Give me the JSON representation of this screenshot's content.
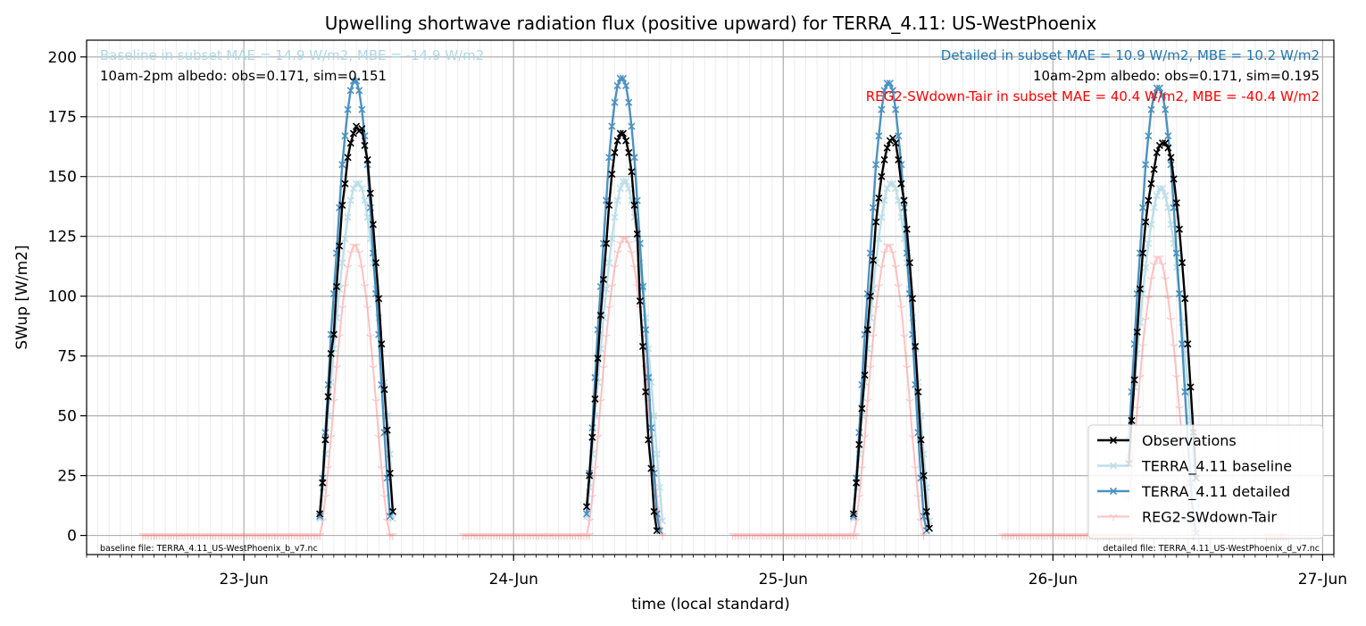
{
  "chart_data": {
    "type": "line",
    "title": "Upwelling shortwave radiation flux (positive upward) for TERRA_4.11: US-WestPhoenix",
    "xlabel": "time (local standard)",
    "ylabel": "SWup [W/m2]",
    "xlim": [
      "2023-06-22T10:00",
      "2023-06-27T01:00"
    ],
    "ylim": [
      -8,
      207
    ],
    "grid": true,
    "y_ticks": [
      0,
      25,
      50,
      75,
      100,
      125,
      150,
      175,
      200
    ],
    "x_ticks": [
      {
        "x": "2023-06-23T00:00",
        "label": "23-Jun"
      },
      {
        "x": "2023-06-24T00:00",
        "label": "24-Jun"
      },
      {
        "x": "2023-06-25T00:00",
        "label": "25-Jun"
      },
      {
        "x": "2023-06-26T00:00",
        "label": "26-Jun"
      },
      {
        "x": "2023-06-27T00:00",
        "label": "27-Jun"
      }
    ],
    "legend_position": "lower-right",
    "series": [
      {
        "name": "Observations",
        "color": "#000000",
        "marker": "x",
        "days": [
          "2023-06-23",
          "2023-06-24",
          "2023-06-25",
          "2023-06-26"
        ],
        "values_start_hour": 6.25,
        "values_step_hours": 0.25,
        "values_by_day": [
          [
            null,
            null,
            9,
            22,
            40,
            58,
            76,
            84,
            104,
            121,
            138,
            147,
            158,
            164,
            168,
            171,
            169,
            170,
            163,
            157,
            143,
            130,
            114,
            99,
            80,
            61,
            44,
            26,
            10
          ],
          [
            null,
            12,
            25,
            41,
            57,
            74,
            92,
            107,
            122,
            138,
            151,
            160,
            165,
            168,
            168,
            165,
            160,
            152,
            138,
            126,
            98,
            79,
            60,
            40,
            28,
            10,
            2
          ],
          [
            9,
            22,
            38,
            53,
            67,
            86,
            100,
            115,
            131,
            141,
            150,
            157,
            162,
            165,
            166,
            164,
            157,
            147,
            140,
            128,
            114,
            99,
            79,
            60,
            40,
            25,
            10,
            3
          ],
          [
            null,
            null,
            30,
            48,
            65,
            85,
            103,
            118,
            131,
            140,
            147,
            153,
            160,
            163,
            164,
            164,
            162,
            158,
            149,
            139,
            128,
            114,
            99,
            80,
            62,
            43,
            24
          ]
        ]
      },
      {
        "name": "TERRA_4.11 baseline",
        "color": "#add8e6",
        "marker": "x",
        "days": [
          "2023-06-23",
          "2023-06-24",
          "2023-06-25",
          "2023-06-26"
        ],
        "values_start_hour": 6.25,
        "values_step_hours": 0.25,
        "values_by_day": [
          [
            null,
            null,
            7,
            20,
            34,
            50,
            64,
            78,
            91,
            103,
            114,
            124,
            133,
            140,
            145,
            147,
            147,
            145,
            140,
            133,
            124,
            114,
            103,
            91,
            78,
            64,
            50,
            34,
            7
          ],
          [
            null,
            8,
            20,
            34,
            50,
            64,
            78,
            91,
            103,
            114,
            124,
            133,
            140,
            145,
            148,
            148,
            145,
            140,
            133,
            124,
            114,
            103,
            91,
            78,
            64,
            50,
            34,
            20,
            6
          ],
          [
            7,
            20,
            34,
            50,
            64,
            78,
            91,
            103,
            114,
            124,
            133,
            140,
            145,
            147,
            147,
            145,
            140,
            133,
            124,
            114,
            103,
            91,
            78,
            64,
            50,
            34,
            20,
            6
          ],
          [
            null,
            null,
            33,
            48,
            62,
            76,
            89,
            101,
            112,
            122,
            130,
            137,
            142,
            145,
            145,
            142,
            137,
            130,
            122,
            112,
            101,
            89,
            76,
            62,
            48,
            33,
            19,
            6
          ]
        ]
      },
      {
        "name": "TERRA_4.11 detailed",
        "color": "#1f77b4",
        "marker": "x",
        "days": [
          "2023-06-23",
          "2023-06-24",
          "2023-06-25",
          "2023-06-26"
        ],
        "values_start_hour": 6.25,
        "values_step_hours": 0.25,
        "values_by_day": [
          [
            null,
            null,
            8,
            24,
            43,
            63,
            84,
            101,
            118,
            137,
            155,
            167,
            178,
            186,
            190,
            190,
            186,
            178,
            167,
            155,
            137,
            118,
            101,
            84,
            63,
            43,
            24,
            8
          ],
          [
            null,
            9,
            26,
            45,
            66,
            86,
            104,
            122,
            140,
            158,
            171,
            181,
            188,
            191,
            191,
            188,
            181,
            171,
            158,
            140,
            122,
            104,
            86,
            66,
            45,
            26,
            9,
            2
          ],
          [
            8,
            24,
            43,
            63,
            84,
            101,
            118,
            137,
            155,
            167,
            178,
            186,
            189,
            189,
            186,
            178,
            167,
            155,
            137,
            118,
            101,
            84,
            63,
            43,
            24,
            8,
            2,
            null
          ],
          [
            null,
            null,
            40,
            60,
            80,
            101,
            118,
            137,
            155,
            167,
            178,
            184,
            187,
            187,
            184,
            178,
            167,
            155,
            137,
            118,
            101,
            80,
            60,
            40,
            22,
            7,
            1,
            null
          ]
        ]
      },
      {
        "name": "REG2-SWdown-Tair",
        "color": "#ff6666",
        "marker": "1",
        "days": [
          "2023-06-23",
          "2023-06-24",
          "2023-06-25",
          "2023-06-26"
        ],
        "values_start_hour": 6.25,
        "values_step_hours": 0.25,
        "values_by_day": [
          [
            null,
            null,
            0,
            6,
            16,
            28,
            41,
            56,
            70,
            83,
            95,
            104,
            112,
            118,
            121,
            121,
            118,
            112,
            104,
            95,
            83,
            70,
            56,
            41,
            28,
            16,
            6,
            0,
            0
          ],
          [
            null,
            0,
            6,
            16,
            28,
            41,
            56,
            70,
            83,
            95,
            104,
            112,
            118,
            122,
            124,
            124,
            122,
            118,
            112,
            104,
            95,
            83,
            70,
            56,
            41,
            28,
            16,
            6,
            0
          ],
          [
            0,
            6,
            16,
            28,
            41,
            56,
            70,
            83,
            95,
            104,
            112,
            118,
            121,
            121,
            118,
            112,
            104,
            95,
            83,
            70,
            56,
            41,
            28,
            16,
            6,
            0,
            null,
            null
          ],
          [
            null,
            null,
            15,
            26,
            39,
            53,
            66,
            79,
            90,
            99,
            107,
            113,
            116,
            116,
            113,
            107,
            99,
            90,
            79,
            66,
            53,
            39,
            26,
            15,
            5,
            0,
            null,
            null
          ]
        ],
        "night_zero_hours": [
          [
            "2023-06-22T15:00",
            "2023-06-23T06:45"
          ],
          [
            "2023-06-23T19:30",
            "2023-06-24T06:45"
          ],
          [
            "2023-06-24T19:30",
            "2023-06-25T06:30"
          ],
          [
            "2023-06-25T19:30",
            "2023-06-26T07:00"
          ],
          [
            "2023-06-26T19:00",
            "2023-06-26T20:45"
          ]
        ]
      }
    ],
    "annotations": {
      "baseline_stats": "Baseline in subset MAE = 14.9 W/m2, MBE = -14.9 W/m2",
      "baseline_albedo": "10am-2pm albedo: obs=0.171, sim=0.151",
      "detailed_stats": "Detailed in subset MAE = 10.9 W/m2, MBE = 10.2 W/m2",
      "detailed_albedo": "10am-2pm albedo: obs=0.171, sim=0.195",
      "reg2_stats": "REG2-SWdown-Tair in subset MAE = 40.4 W/m2, MBE = -40.4 W/m2",
      "baseline_file": "baseline file: TERRA_4.11_US-WestPhoenix_b_v7.nc",
      "detailed_file": "detailed file: TERRA_4.11_US-WestPhoenix_d_v7.nc"
    },
    "annotation_colors": {
      "baseline_stats": "#add8e6",
      "detailed_stats": "#1f77b4",
      "reg2_stats": "#ff0000"
    }
  }
}
